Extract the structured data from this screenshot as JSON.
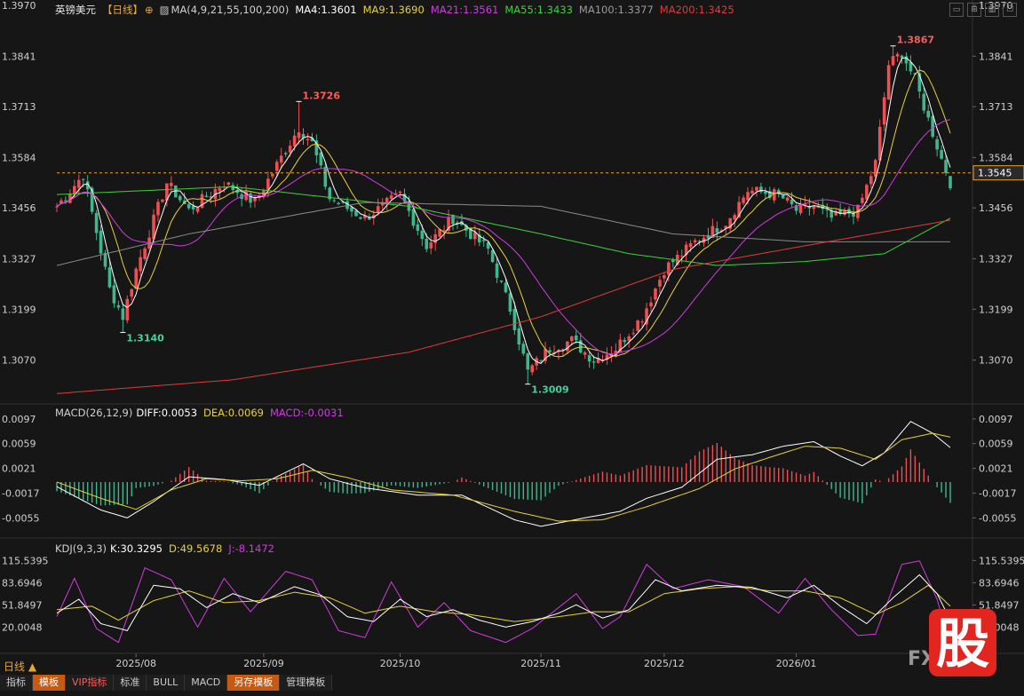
{
  "header": {
    "symbol": "英镑美元",
    "period_tag": "【日线】",
    "ma_label": "MA(4,9,21,55,100,200)",
    "ma4": "MA4:1.3601",
    "ma9": "MA9:1.3690",
    "ma21": "MA21:1.3561",
    "ma55": "MA55:1.3433",
    "ma100": "MA100:1.3377",
    "ma200": "MA200:1.3425"
  },
  "macd_header": {
    "name": "MACD(26,12,9)",
    "diff": "DIFF:0.0053",
    "dea": "DEA:0.0069",
    "macd": "MACD:-0.0031"
  },
  "kdj_header": {
    "name": "KDJ(9,3,3)",
    "k": "K:30.3295",
    "d": "D:49.5678",
    "j": "J:-8.1472"
  },
  "bottom": {
    "period_label": "日线 ▲",
    "tabs": [
      "指标",
      "模板",
      "VIP指标",
      "标准",
      "BULL",
      "MACD",
      "另存模板",
      "管理模板"
    ],
    "logo_text": "股",
    "watermark": "FX"
  },
  "colors": {
    "up": "#ef4f52",
    "down": "#3fb78d",
    "ma4": "#ffffff",
    "ma9": "#e6d23a",
    "ma21": "#d13be0",
    "ma55": "#3fcf3f",
    "ma100": "#8a8a8a",
    "ma200": "#e03a3a",
    "background": "#161616"
  },
  "chart_data": [
    {
      "type": "candlestick",
      "title": "英镑美元 日线",
      "y_ticks": [
        "1.3970",
        "1.3841",
        "1.3713",
        "1.3584",
        "1.3456",
        "1.3327",
        "1.3199",
        "1.3070"
      ],
      "ylim": [
        1.297,
        1.397
      ],
      "x_tick_labels": [
        "2025/08",
        "2025/09",
        "2025/10",
        "2025/11",
        "2025/12",
        "2026/01"
      ],
      "current_price": "1.3545",
      "current_price_value": 1.3545,
      "annotations": [
        {
          "text": "1.3140",
          "value": 1.314
        },
        {
          "text": "1.3726",
          "value": 1.3726
        },
        {
          "text": "1.3009",
          "value": 1.3009
        },
        {
          "text": "1.3867",
          "value": 1.3867
        }
      ],
      "moving_averages": [
        "MA4",
        "MA9",
        "MA21",
        "MA55",
        "MA100",
        "MA200"
      ],
      "close_keypoints": [
        [
          0,
          1.346
        ],
        [
          6,
          1.354
        ],
        [
          12,
          1.325
        ],
        [
          15,
          1.318
        ],
        [
          18,
          1.33
        ],
        [
          25,
          1.352
        ],
        [
          30,
          1.345
        ],
        [
          38,
          1.352
        ],
        [
          45,
          1.347
        ],
        [
          55,
          1.366
        ],
        [
          58,
          1.362
        ],
        [
          62,
          1.348
        ],
        [
          70,
          1.343
        ],
        [
          78,
          1.349
        ],
        [
          84,
          1.336
        ],
        [
          90,
          1.343
        ],
        [
          98,
          1.335
        ],
        [
          103,
          1.32
        ],
        [
          107,
          1.304
        ],
        [
          112,
          1.31
        ],
        [
          117,
          1.312
        ],
        [
          122,
          1.307
        ],
        [
          127,
          1.31
        ],
        [
          133,
          1.318
        ],
        [
          138,
          1.33
        ],
        [
          145,
          1.337
        ],
        [
          152,
          1.342
        ],
        [
          157,
          1.35
        ],
        [
          164,
          1.349
        ],
        [
          168,
          1.345
        ],
        [
          172,
          1.346
        ],
        [
          176,
          1.343
        ],
        [
          182,
          1.345
        ],
        [
          186,
          1.357
        ],
        [
          189,
          1.382
        ],
        [
          192,
          1.385
        ],
        [
          195,
          1.378
        ],
        [
          198,
          1.368
        ],
        [
          201,
          1.358
        ],
        [
          203,
          1.352
        ]
      ]
    },
    {
      "type": "macd",
      "y_ticks": [
        "0.0097",
        "0.0059",
        "0.0021",
        "-0.0017",
        "-0.0055"
      ],
      "ylim": [
        -0.0075,
        0.0105
      ],
      "diff_keypoints": [
        [
          0,
          -0.0007
        ],
        [
          10,
          -0.0043
        ],
        [
          16,
          -0.0055
        ],
        [
          22,
          -0.003
        ],
        [
          30,
          0.0008
        ],
        [
          38,
          0.0004
        ],
        [
          46,
          -0.0005
        ],
        [
          56,
          0.0028
        ],
        [
          62,
          0.0005
        ],
        [
          70,
          -0.0009
        ],
        [
          82,
          -0.002
        ],
        [
          92,
          -0.002
        ],
        [
          104,
          -0.0058
        ],
        [
          110,
          -0.0068
        ],
        [
          120,
          -0.0055
        ],
        [
          128,
          -0.0045
        ],
        [
          134,
          -0.0025
        ],
        [
          142,
          -0.0008
        ],
        [
          150,
          0.0035
        ],
        [
          158,
          0.0042
        ],
        [
          165,
          0.0055
        ],
        [
          172,
          0.0062
        ],
        [
          178,
          0.004
        ],
        [
          183,
          0.0025
        ],
        [
          188,
          0.0045
        ],
        [
          194,
          0.0093
        ],
        [
          199,
          0.0075
        ],
        [
          203,
          0.0053
        ]
      ],
      "dea_keypoints": [
        [
          0,
          0.0
        ],
        [
          10,
          -0.0025
        ],
        [
          18,
          -0.0042
        ],
        [
          26,
          -0.0012
        ],
        [
          34,
          0.0005
        ],
        [
          42,
          0.0002
        ],
        [
          50,
          0.0005
        ],
        [
          58,
          0.0018
        ],
        [
          66,
          0.0007
        ],
        [
          76,
          -0.0012
        ],
        [
          90,
          -0.002
        ],
        [
          104,
          -0.0045
        ],
        [
          114,
          -0.006
        ],
        [
          124,
          -0.0058
        ],
        [
          134,
          -0.0038
        ],
        [
          146,
          -0.001
        ],
        [
          154,
          0.002
        ],
        [
          162,
          0.0038
        ],
        [
          170,
          0.0055
        ],
        [
          178,
          0.0052
        ],
        [
          186,
          0.0035
        ],
        [
          192,
          0.0065
        ],
        [
          199,
          0.0075
        ],
        [
          203,
          0.0069
        ]
      ]
    },
    {
      "type": "kdj",
      "y_ticks": [
        "115.5395",
        "83.6946",
        "51.8497",
        "20.0048"
      ],
      "ylim": [
        -10,
        130
      ],
      "k_keypoints": [
        [
          0,
          40
        ],
        [
          5,
          60
        ],
        [
          10,
          25
        ],
        [
          16,
          15
        ],
        [
          22,
          80
        ],
        [
          28,
          75
        ],
        [
          34,
          48
        ],
        [
          40,
          68
        ],
        [
          46,
          55
        ],
        [
          54,
          78
        ],
        [
          60,
          66
        ],
        [
          66,
          35
        ],
        [
          72,
          28
        ],
        [
          78,
          60
        ],
        [
          84,
          35
        ],
        [
          90,
          45
        ],
        [
          96,
          30
        ],
        [
          102,
          20
        ],
        [
          108,
          28
        ],
        [
          114,
          40
        ],
        [
          118,
          52
        ],
        [
          124,
          33
        ],
        [
          130,
          45
        ],
        [
          136,
          88
        ],
        [
          142,
          72
        ],
        [
          150,
          80
        ],
        [
          158,
          77
        ],
        [
          166,
          62
        ],
        [
          172,
          80
        ],
        [
          178,
          50
        ],
        [
          184,
          25
        ],
        [
          190,
          62
        ],
        [
          196,
          95
        ],
        [
          200,
          68
        ],
        [
          203,
          30
        ]
      ],
      "d_keypoints": [
        [
          0,
          45
        ],
        [
          8,
          50
        ],
        [
          14,
          30
        ],
        [
          22,
          58
        ],
        [
          30,
          72
        ],
        [
          38,
          55
        ],
        [
          46,
          58
        ],
        [
          54,
          70
        ],
        [
          62,
          62
        ],
        [
          70,
          40
        ],
        [
          78,
          50
        ],
        [
          86,
          42
        ],
        [
          94,
          38
        ],
        [
          104,
          28
        ],
        [
          114,
          35
        ],
        [
          122,
          42
        ],
        [
          130,
          42
        ],
        [
          138,
          68
        ],
        [
          146,
          75
        ],
        [
          154,
          78
        ],
        [
          162,
          72
        ],
        [
          170,
          72
        ],
        [
          178,
          62
        ],
        [
          186,
          38
        ],
        [
          192,
          55
        ],
        [
          198,
          80
        ],
        [
          203,
          50
        ]
      ],
      "j_keypoints": [
        [
          0,
          35
        ],
        [
          4,
          90
        ],
        [
          9,
          18
        ],
        [
          14,
          -2
        ],
        [
          20,
          105
        ],
        [
          26,
          88
        ],
        [
          32,
          20
        ],
        [
          38,
          90
        ],
        [
          44,
          42
        ],
        [
          52,
          100
        ],
        [
          58,
          88
        ],
        [
          64,
          15
        ],
        [
          70,
          5
        ],
        [
          76,
          85
        ],
        [
          82,
          20
        ],
        [
          88,
          55
        ],
        [
          94,
          15
        ],
        [
          102,
          -2
        ],
        [
          108,
          18
        ],
        [
          114,
          48
        ],
        [
          118,
          68
        ],
        [
          124,
          18
        ],
        [
          128,
          35
        ],
        [
          134,
          110
        ],
        [
          140,
          75
        ],
        [
          148,
          88
        ],
        [
          156,
          78
        ],
        [
          164,
          40
        ],
        [
          170,
          90
        ],
        [
          176,
          45
        ],
        [
          182,
          8
        ],
        [
          186,
          10
        ],
        [
          192,
          110
        ],
        [
          196,
          115
        ],
        [
          200,
          60
        ],
        [
          203,
          -8
        ]
      ]
    }
  ]
}
